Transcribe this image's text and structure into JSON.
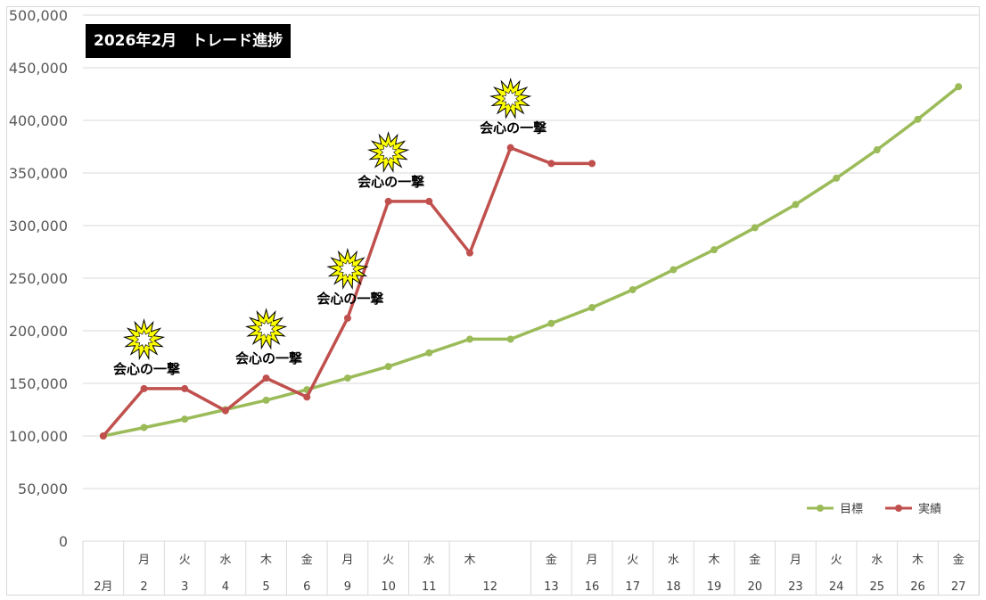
{
  "chart_data": {
    "type": "line",
    "title": "2026年2月　トレード進捗",
    "y_ticks": [
      "0",
      "50,000",
      "100,000",
      "150,000",
      "200,000",
      "250,000",
      "300,000",
      "350,000",
      "400,000",
      "450,000",
      "500,000"
    ],
    "ylim": [
      0,
      500000
    ],
    "grid": true,
    "legend_position": "bottom-right",
    "categories": [
      {
        "weekday": "",
        "date": "2月"
      },
      {
        "weekday": "月",
        "date": "2"
      },
      {
        "weekday": "火",
        "date": "3"
      },
      {
        "weekday": "水",
        "date": "4"
      },
      {
        "weekday": "木",
        "date": "5"
      },
      {
        "weekday": "金",
        "date": "6"
      },
      {
        "weekday": "月",
        "date": "9"
      },
      {
        "weekday": "火",
        "date": "10"
      },
      {
        "weekday": "水",
        "date": "11"
      },
      {
        "weekday": "木",
        "date": "12"
      },
      {
        "weekday": "",
        "date": ""
      },
      {
        "weekday": "金",
        "date": "13"
      },
      {
        "weekday": "月",
        "date": "16"
      },
      {
        "weekday": "火",
        "date": "17"
      },
      {
        "weekday": "水",
        "date": "18"
      },
      {
        "weekday": "木",
        "date": "19"
      },
      {
        "weekday": "金",
        "date": "20"
      },
      {
        "weekday": "月",
        "date": "23"
      },
      {
        "weekday": "火",
        "date": "24"
      },
      {
        "weekday": "水",
        "date": "25"
      },
      {
        "weekday": "木",
        "date": "26"
      },
      {
        "weekday": "金",
        "date": "27"
      }
    ],
    "series": [
      {
        "name": "目標",
        "color": "#9bbb59",
        "values": [
          100000,
          108000,
          116000,
          125000,
          134000,
          144000,
          155000,
          166000,
          179000,
          192000,
          192000,
          207000,
          222000,
          239000,
          258000,
          277000,
          298000,
          320000,
          345000,
          372000,
          401000,
          432000
        ]
      },
      {
        "name": "実績",
        "color": "#c0504d",
        "values": [
          100000,
          145000,
          145000,
          124000,
          155000,
          137000,
          212000,
          323000,
          323000,
          274000,
          374000,
          359000,
          359000,
          null,
          null,
          null,
          null,
          null,
          null,
          null,
          null,
          null
        ]
      }
    ],
    "annotations": [
      {
        "text": "会心の一撃",
        "category_index": 1,
        "value": 145000
      },
      {
        "text": "会心の一撃",
        "category_index": 4,
        "value": 155000
      },
      {
        "text": "会心の一撃",
        "category_index": 6,
        "value": 212000
      },
      {
        "text": "会心の一撃",
        "category_index": 7,
        "value": 323000
      },
      {
        "text": "会心の一撃",
        "category_index": 10,
        "value": 374000
      }
    ]
  }
}
